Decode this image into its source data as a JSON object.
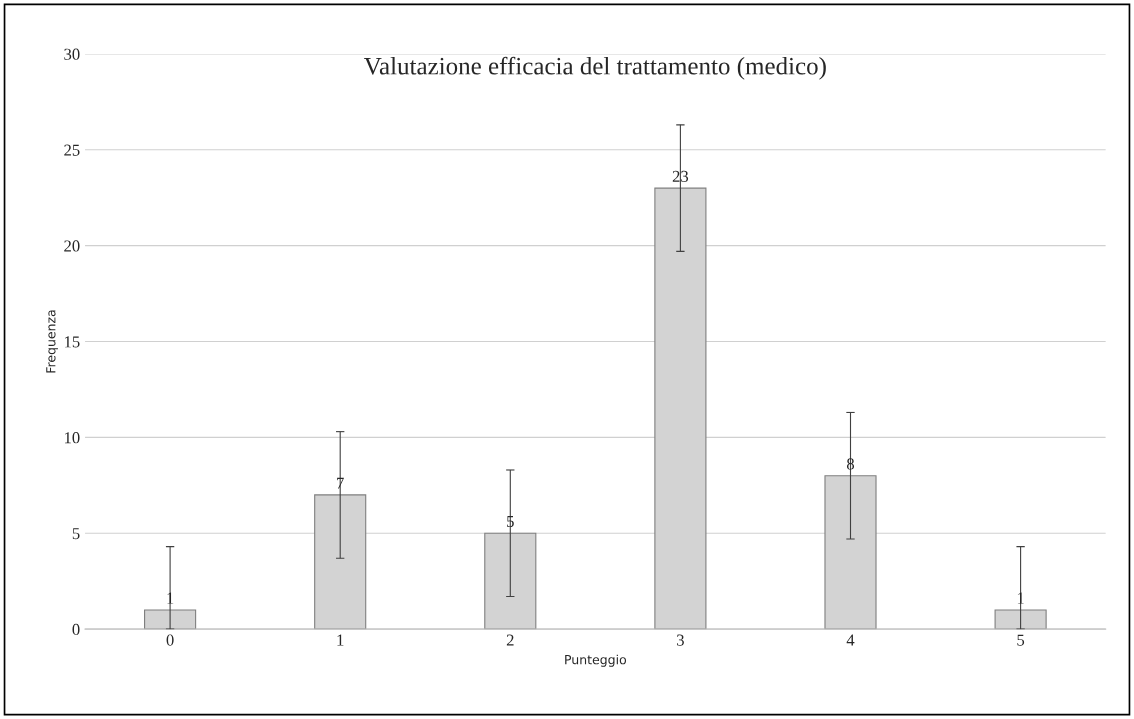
{
  "chart_data": {
    "type": "bar",
    "title": "Valutazione efficacia del trattamento (medico)",
    "xlabel": "Punteggio",
    "ylabel": "Frequenza",
    "categories": [
      "0",
      "1",
      "2",
      "3",
      "4",
      "5"
    ],
    "values": [
      1,
      7,
      5,
      23,
      8,
      1
    ],
    "errors": [
      [
        0,
        4.3
      ],
      3.3,
      3.3,
      3.3,
      3.3,
      [
        0,
        4.3
      ]
    ],
    "color": "#d3d3d3",
    "ylim": [
      0,
      30
    ],
    "yticks": [
      0,
      5,
      10,
      15,
      20,
      25,
      30
    ],
    "grid": "y",
    "data_labels": true
  }
}
